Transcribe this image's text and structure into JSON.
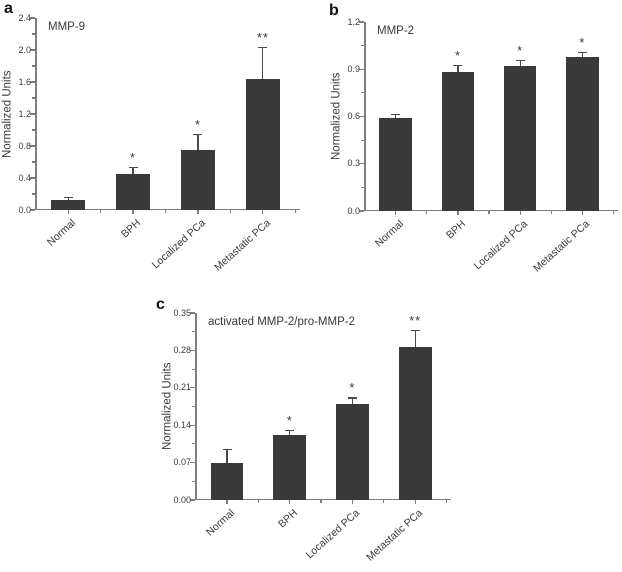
{
  "figure": {
    "background": "#ffffff",
    "colors": {
      "bar": "#393939",
      "axis": "#7d7d7d",
      "text": "#3a3a3a",
      "error_bar": "#4a4a4a",
      "panel_label": "#111111"
    }
  },
  "chart_data": [
    {
      "type": "bar",
      "panel_label": "a",
      "title": "MMP-9",
      "xlabel": "",
      "ylabel": "Normalized Units",
      "categories": [
        "Normal",
        "BPH",
        "Localized PCa",
        "Metastatic PCa"
      ],
      "values": [
        0.12,
        0.45,
        0.75,
        1.64
      ],
      "errors": [
        0.04,
        0.09,
        0.2,
        0.4
      ],
      "significance": [
        "",
        "*",
        "*",
        "**"
      ],
      "ylim": [
        0,
        2.4
      ],
      "ytick_values": [
        0,
        0.4,
        0.8,
        1.2,
        1.6,
        2.0,
        2.4
      ],
      "ytick_labels": [
        "0.0",
        "0.4",
        "0.8",
        "1.2",
        "1.6",
        "2.0",
        "2.4"
      ],
      "minor_ticks": true,
      "grid": false,
      "legend": "none"
    },
    {
      "type": "bar",
      "panel_label": "b",
      "title": "MMP-2",
      "xlabel": "",
      "ylabel": "Normalized Units",
      "categories": [
        "Normal",
        "BPH",
        "Localized PCa",
        "Metastatic PCa"
      ],
      "values": [
        0.59,
        0.885,
        0.92,
        0.975
      ],
      "errors": [
        0.025,
        0.045,
        0.04,
        0.035
      ],
      "significance": [
        "",
        "*",
        "*",
        "*"
      ],
      "ylim": [
        0,
        1.2
      ],
      "ytick_values": [
        0,
        0.3,
        0.6,
        0.9,
        1.2
      ],
      "ytick_labels": [
        "0.0",
        "0.3",
        "0.6",
        "0.9",
        "1.2"
      ],
      "minor_ticks": true,
      "grid": false,
      "legend": "none"
    },
    {
      "type": "bar",
      "panel_label": "c",
      "title": "activated MMP-2/pro-MMP-2",
      "xlabel": "",
      "ylabel": "Normalized Units",
      "categories": [
        "Normal",
        "BPH",
        "Localized PCa",
        "Metastatic PCa"
      ],
      "values": [
        0.07,
        0.121,
        0.18,
        0.286
      ],
      "errors": [
        0.026,
        0.01,
        0.012,
        0.032
      ],
      "significance": [
        "",
        "*",
        "*",
        "**"
      ],
      "ylim": [
        0,
        0.35
      ],
      "ytick_values": [
        0,
        0.07,
        0.14,
        0.21,
        0.28,
        0.35
      ],
      "ytick_labels": [
        "0.00",
        "0.07",
        "0.14",
        "0.21",
        "0.28",
        "0.35"
      ],
      "minor_ticks": true,
      "grid": false,
      "legend": "none"
    }
  ]
}
